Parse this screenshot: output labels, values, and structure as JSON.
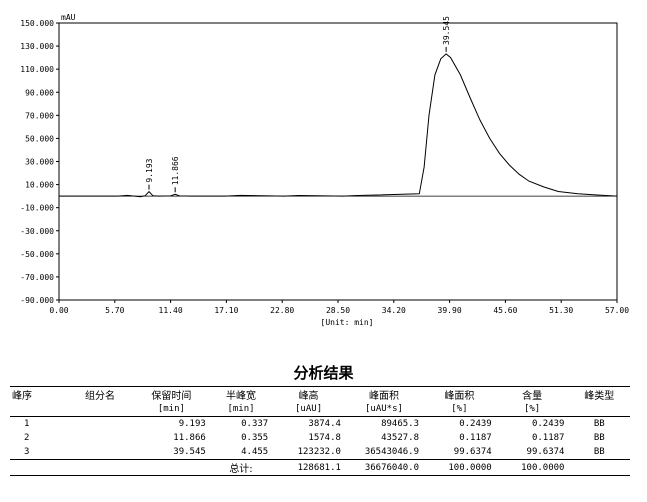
{
  "chart_data": {
    "type": "line",
    "ylabel": "mAU",
    "xlabel": "[Unit: min]",
    "xlim": [
      0,
      57
    ],
    "ylim": [
      -90,
      150
    ],
    "x_ticks": [
      "0.00",
      "5.70",
      "11.40",
      "17.10",
      "22.80",
      "28.50",
      "34.20",
      "39.90",
      "45.60",
      "51.30",
      "57.00"
    ],
    "y_ticks": [
      "150.000",
      "130.000",
      "110.000",
      "90.000",
      "70.000",
      "50.000",
      "30.000",
      "10.000",
      "-10.000",
      "-30.000",
      "-50.000",
      "-70.000",
      "-90.000"
    ],
    "peaks": [
      {
        "label": "9.193",
        "x": 9.193,
        "y": 3.9
      },
      {
        "label": "11.866",
        "x": 11.866,
        "y": 1.6
      },
      {
        "label": "39.545",
        "x": 39.545,
        "y": 123.2
      }
    ],
    "series": [
      {
        "x": [
          0,
          6.0,
          7.0,
          8.3,
          8.8,
          9.193,
          9.6,
          10.2,
          11.4,
          11.866,
          12.3,
          13.5,
          17.0,
          18.5,
          23.0,
          24.5,
          29.0,
          30.5,
          36.8,
          37.3,
          37.8,
          38.4,
          39.0,
          39.545,
          40.0,
          41.0,
          42.0,
          43.0,
          44.0,
          45.0,
          46.0,
          47.0,
          48.0,
          49.5,
          51.0,
          53.0,
          55.0,
          57.0
        ],
        "values": [
          0,
          0,
          0.6,
          -0.5,
          0.3,
          3.9,
          0.3,
          0,
          0.2,
          1.6,
          0.2,
          0,
          0,
          0.6,
          0,
          0.5,
          0,
          0.5,
          2,
          25,
          70,
          105,
          119,
          123.2,
          120,
          105,
          85,
          66,
          50,
          37,
          27,
          19,
          13,
          8,
          4,
          2,
          1,
          0
        ]
      }
    ]
  },
  "results": {
    "title": "分析结果",
    "headers": [
      "峰序",
      "组分名",
      "保留时间",
      "半峰宽",
      "峰高",
      "峰面积",
      "峰面积",
      "含量",
      "峰类型"
    ],
    "units": [
      "",
      "",
      "[min]",
      "[min]",
      "[uAU]",
      "[uAU*s]",
      "[%]",
      "[%]",
      ""
    ],
    "rows": [
      [
        "1",
        "",
        "9.193",
        "0.337",
        "3874.4",
        "89465.3",
        "0.2439",
        "0.2439",
        "BB"
      ],
      [
        "2",
        "",
        "11.866",
        "0.355",
        "1574.8",
        "43527.8",
        "0.1187",
        "0.1187",
        "BB"
      ],
      [
        "3",
        "",
        "39.545",
        "4.455",
        "123232.0",
        "36543046.9",
        "99.6374",
        "99.6374",
        "BB"
      ]
    ],
    "total": {
      "label": "总计:",
      "height": "128681.1",
      "area": "36676040.0",
      "area_pct": "100.0000",
      "content": "100.0000"
    }
  }
}
